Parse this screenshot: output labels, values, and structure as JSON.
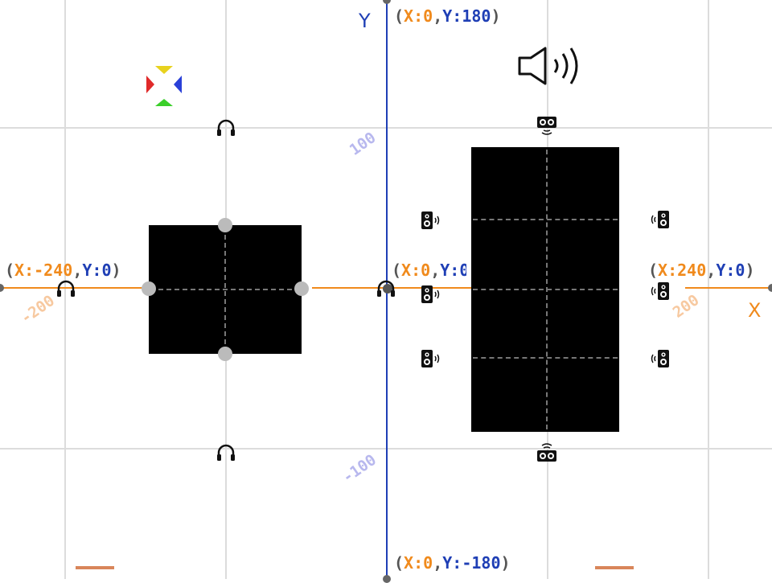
{
  "axes": {
    "y_letter": "Y",
    "x_letter": "X",
    "top": {
      "x_key": "X:",
      "x_val": "0",
      "y_key": "Y:",
      "y_val": "180"
    },
    "bottom": {
      "x_key": "X:",
      "x_val": "0",
      "y_key": "Y:",
      "y_val": "-180"
    },
    "left": {
      "x_key": "X:",
      "x_val": "-240",
      "y_key": "Y:",
      "y_val": "0"
    },
    "right": {
      "x_key": "X:",
      "x_val": "240",
      "y_key": "Y:",
      "y_val": "0"
    },
    "center": {
      "x_key": "X:",
      "x_val": "0",
      "y_key": "Y:",
      "y_val": "0"
    }
  },
  "ticks": {
    "y_pos": "100",
    "y_neg": "-100",
    "x_pos": "200",
    "x_neg": "-200"
  },
  "colors": {
    "x_axis": "#f08a1c",
    "y_axis": "#1f3fb5",
    "grid": "#dcdcdc",
    "panel": "#000000"
  },
  "icons": {
    "listener": "headphones-icon",
    "speaker": "speaker-icon",
    "volume": "volume-icon",
    "direction": "direction-pad-icon"
  }
}
